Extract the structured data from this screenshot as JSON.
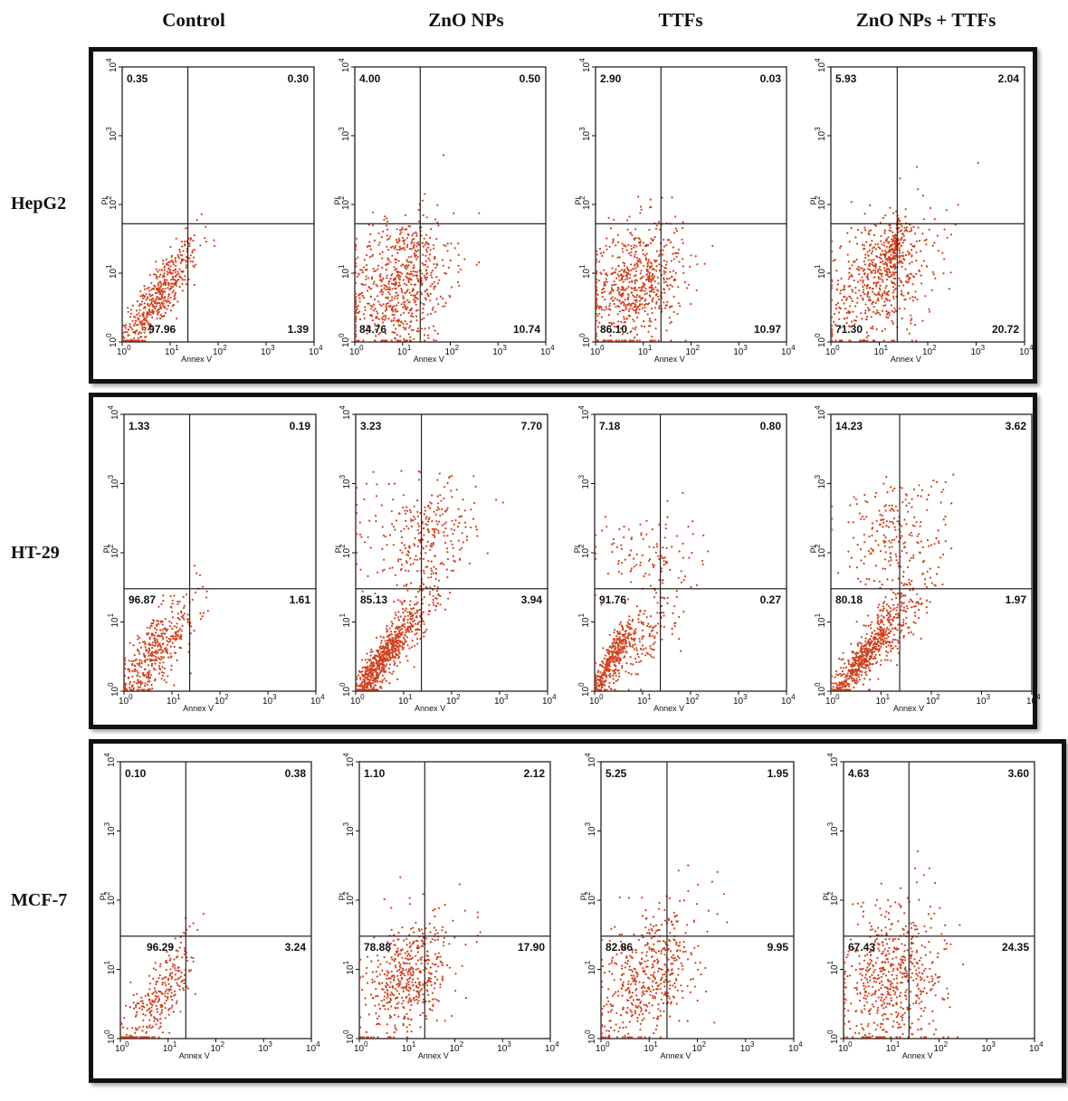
{
  "columns": [
    "Control",
    "ZnO NPs",
    "TTFs",
    "ZnO NPs + TTFs"
  ],
  "rows": [
    "HepG2",
    "HT-29",
    "MCF-7"
  ],
  "colors": {
    "dots": "#d2401c",
    "frame": "#111111",
    "background": "#ffffff"
  },
  "chart_data": {
    "type": "scatter",
    "subtype": "flow-cytometry Annexin V / PI quadrant dot plots",
    "xlabel": "Annex V",
    "ylabel": "PI",
    "xlim": [
      1,
      10000
    ],
    "ylim": [
      1,
      10000
    ],
    "scale": "log",
    "tick_base": "10",
    "tick_exponents": [
      "0",
      "1",
      "2",
      "3",
      "4"
    ],
    "panels": [
      {
        "row": "HepG2",
        "column": "Control",
        "quadrants": {
          "ul": "0.35",
          "ur": "0.30",
          "ll": "97.96",
          "lr": "1.39"
        }
      },
      {
        "row": "HepG2",
        "column": "ZnO NPs",
        "quadrants": {
          "ul": "4.00",
          "ur": "0.50",
          "ll": "84.76",
          "lr": "10.74"
        }
      },
      {
        "row": "HepG2",
        "column": "TTFs",
        "quadrants": {
          "ul": "2.90",
          "ur": "0.03",
          "ll": "86.10",
          "lr": "10.97"
        }
      },
      {
        "row": "HepG2",
        "column": "ZnO NPs + TTFs",
        "quadrants": {
          "ul": "5.93",
          "ur": "2.04",
          "ll": "71.30",
          "lr": "20.72"
        }
      },
      {
        "row": "HT-29",
        "column": "Control",
        "quadrants": {
          "ul": "1.33",
          "ur": "0.19",
          "ll": "96.87",
          "lr": "1.61"
        }
      },
      {
        "row": "HT-29",
        "column": "ZnO NPs",
        "quadrants": {
          "ul": "3.23",
          "ur": "7.70",
          "ll": "85.13",
          "lr": "3.94"
        }
      },
      {
        "row": "HT-29",
        "column": "TTFs",
        "quadrants": {
          "ul": "7.18",
          "ur": "0.80",
          "ll": "91.76",
          "lr": "0.27"
        }
      },
      {
        "row": "HT-29",
        "column": "ZnO NPs + TTFs",
        "quadrants": {
          "ul": "14.23",
          "ur": "3.62",
          "ll": "80.18",
          "lr": "1.97"
        }
      },
      {
        "row": "MCF-7",
        "column": "Control",
        "quadrants": {
          "ul": "0.10",
          "ur": "0.38",
          "ll": "96.29",
          "lr": "3.24"
        }
      },
      {
        "row": "MCF-7",
        "column": "ZnO NPs",
        "quadrants": {
          "ul": "1.10",
          "ur": "2.12",
          "ll": "78.88",
          "lr": "17.90"
        }
      },
      {
        "row": "MCF-7",
        "column": "TTFs",
        "quadrants": {
          "ul": "5.25",
          "ur": "1.95",
          "ll": "82.86",
          "lr": "9.95"
        }
      },
      {
        "row": "MCF-7",
        "column": "ZnO NPs + TTFs",
        "quadrants": {
          "ul": "4.63",
          "ur": "3.60",
          "ll": "67.43",
          "lr": "24.35"
        }
      }
    ]
  }
}
